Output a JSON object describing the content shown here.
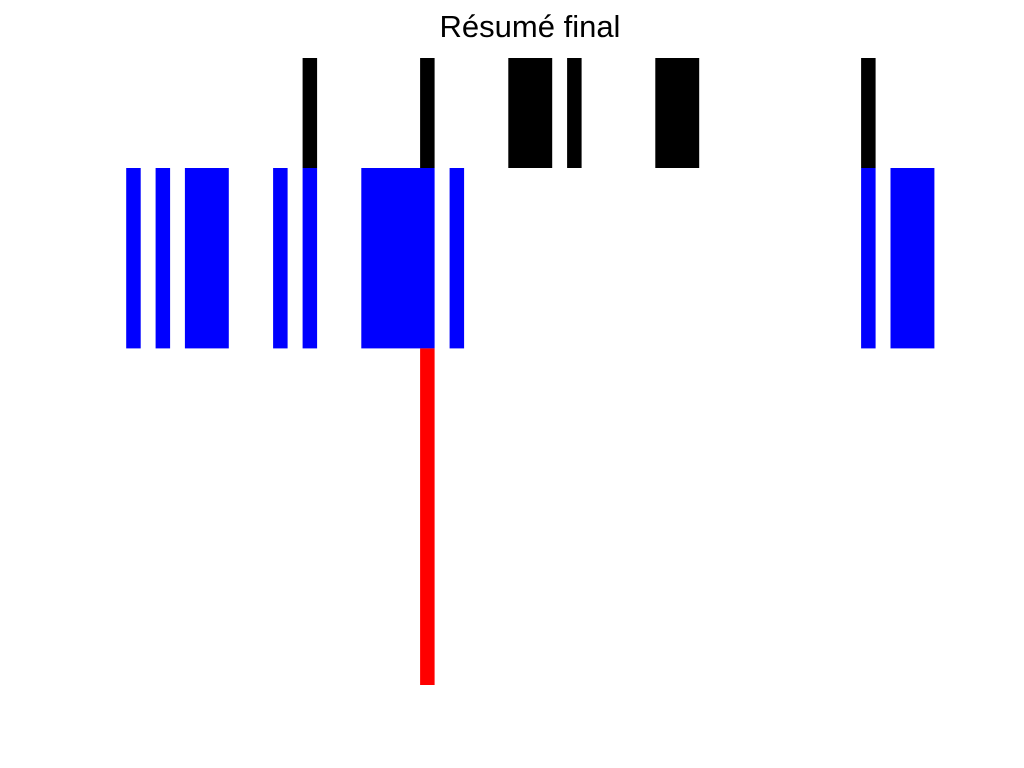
{
  "chart_data": {
    "type": "bar",
    "title": "Résumé final",
    "xlabel": "",
    "ylabel": "",
    "axes_visible": false,
    "grid": false,
    "x_unit": "bin",
    "slots": 27,
    "rows": [
      {
        "row": 1,
        "color": "#000000",
        "intervals": [
          [
            10,
            10
          ],
          [
            14,
            14
          ],
          [
            17,
            18
          ],
          [
            19,
            19
          ],
          [
            22,
            23
          ],
          [
            29,
            29
          ]
        ]
      },
      {
        "row": 2,
        "color": "#0000ff",
        "intervals": [
          [
            4,
            4
          ],
          [
            5,
            5
          ],
          [
            6,
            7
          ],
          [
            9,
            9
          ],
          [
            10,
            10
          ],
          [
            12,
            14
          ],
          [
            15,
            15
          ],
          [
            29,
            29
          ],
          [
            30,
            31
          ]
        ]
      },
      {
        "row": 3,
        "color": "#ff0000",
        "intervals": [
          [
            14,
            14
          ]
        ]
      }
    ],
    "row_heights": [
      1,
      1.64,
      3.06
    ]
  }
}
